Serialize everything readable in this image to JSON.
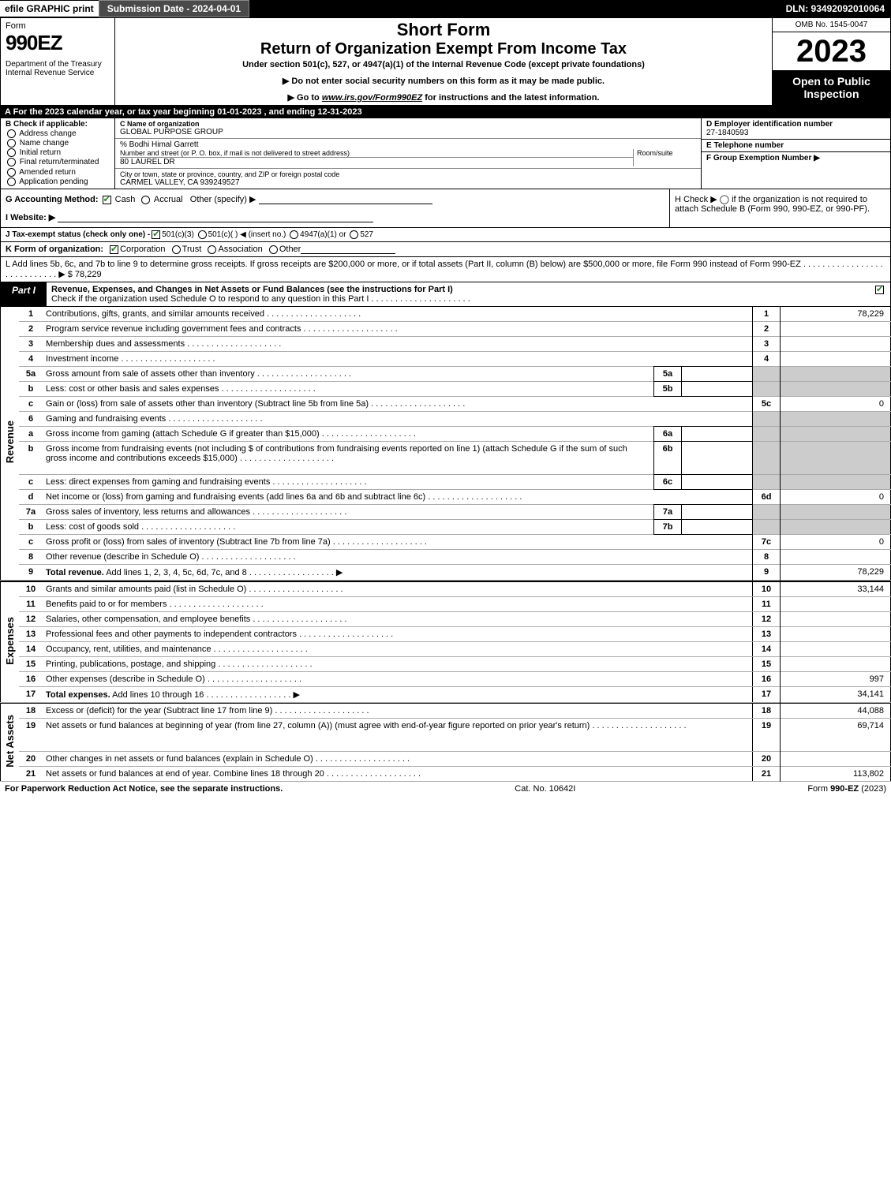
{
  "topbar": {
    "efile": "efile GRAPHIC print",
    "submission": "Submission Date - 2024-04-01",
    "dln": "DLN: 93492092010064"
  },
  "header": {
    "form_word": "Form",
    "form_number": "990EZ",
    "dept": "Department of the Treasury\nInternal Revenue Service",
    "short_form": "Short Form",
    "return_title": "Return of Organization Exempt From Income Tax",
    "under": "Under section 501(c), 527, or 4947(a)(1) of the Internal Revenue Code (except private foundations)",
    "bullet1": "▶ Do not enter social security numbers on this form as it may be made public.",
    "bullet2_pre": "▶ Go to ",
    "bullet2_link": "www.irs.gov/Form990EZ",
    "bullet2_post": " for instructions and the latest information.",
    "omb": "OMB No. 1545-0047",
    "year": "2023",
    "open": "Open to Public Inspection"
  },
  "line_a": "A  For the 2023 calendar year, or tax year beginning 01-01-2023 , and ending 12-31-2023",
  "col_b": {
    "hdr": "B  Check if applicable:",
    "items": [
      "Address change",
      "Name change",
      "Initial return",
      "Final return/terminated",
      "Amended return",
      "Application pending"
    ]
  },
  "col_c": {
    "c_lbl": "C Name of organization",
    "c_val": "GLOBAL PURPOSE GROUP",
    "care_of": "% Bodhi Himal Garrett",
    "addr_lbl": "Number and street (or P. O. box, if mail is not delivered to street address)",
    "room_lbl": "Room/suite",
    "addr_val": "80 LAUREL DR",
    "city_lbl": "City or town, state or province, country, and ZIP or foreign postal code",
    "city_val": "CARMEL VALLEY, CA  939249527"
  },
  "col_d": {
    "d_lbl": "D Employer identification number",
    "d_val": "27-1840593",
    "e_lbl": "E Telephone number",
    "e_val": "",
    "f_lbl": "F Group Exemption Number  ▶",
    "f_val": ""
  },
  "line_g": {
    "lbl": "G Accounting Method:",
    "cash": "Cash",
    "accrual": "Accrual",
    "other": "Other (specify) ▶"
  },
  "line_h": "H  Check ▶  ◯  if the organization is not required to attach Schedule B (Form 990, 990-EZ, or 990-PF).",
  "line_i": "I Website: ▶",
  "line_j": {
    "pre": "J Tax-exempt status (check only one) - ",
    "o1": "501(c)(3)",
    "o2": "501(c)(  ) ◀ (insert no.)",
    "o3": "4947(a)(1) or",
    "o4": "527"
  },
  "line_k": {
    "lbl": "K Form of organization:",
    "o1": "Corporation",
    "o2": "Trust",
    "o3": "Association",
    "o4": "Other"
  },
  "line_l": "L Add lines 5b, 6c, and 7b to line 9 to determine gross receipts. If gross receipts are $200,000 or more, or if total assets (Part II, column (B) below) are $500,000 or more, file Form 990 instead of Form 990-EZ  . . . . . . . . . . . . . . . . . . . . . . . . . . . .  ▶ $ 78,229",
  "part1": {
    "tag": "Part I",
    "title": "Revenue, Expenses, and Changes in Net Assets or Fund Balances (see the instructions for Part I)",
    "sub": "Check if the organization used Schedule O to respond to any question in this Part I  . . . . . . . . . . . . . . . . . . . . ."
  },
  "sections": {
    "revenue": "Revenue",
    "expenses": "Expenses",
    "netassets": "Net Assets"
  },
  "rows": [
    {
      "n": "1",
      "d": "Contributions, gifts, grants, and similar amounts received",
      "num": "1",
      "val": "78,229"
    },
    {
      "n": "2",
      "d": "Program service revenue including government fees and contracts",
      "num": "2",
      "val": ""
    },
    {
      "n": "3",
      "d": "Membership dues and assessments",
      "num": "3",
      "val": ""
    },
    {
      "n": "4",
      "d": "Investment income",
      "num": "4",
      "val": ""
    },
    {
      "n": "5a",
      "d": "Gross amount from sale of assets other than inventory",
      "sub": "5a",
      "subval": "",
      "grey": true
    },
    {
      "n": "b",
      "d": "Less: cost or other basis and sales expenses",
      "sub": "5b",
      "subval": "",
      "grey": true
    },
    {
      "n": "c",
      "d": "Gain or (loss) from sale of assets other than inventory (Subtract line 5b from line 5a)",
      "num": "5c",
      "val": "0"
    },
    {
      "n": "6",
      "d": "Gaming and fundraising events",
      "grey": true
    },
    {
      "n": "a",
      "d": "Gross income from gaming (attach Schedule G if greater than $15,000)",
      "sub": "6a",
      "subval": "",
      "grey": true
    },
    {
      "n": "b",
      "d": "Gross income from fundraising events (not including $                    of contributions from fundraising events reported on line 1) (attach Schedule G if the sum of such gross income and contributions exceeds $15,000)",
      "sub": "6b",
      "subval": "",
      "grey": true,
      "tall": true
    },
    {
      "n": "c",
      "d": "Less: direct expenses from gaming and fundraising events",
      "sub": "6c",
      "subval": "",
      "grey": true
    },
    {
      "n": "d",
      "d": "Net income or (loss) from gaming and fundraising events (add lines 6a and 6b and subtract line 6c)",
      "num": "6d",
      "val": "0"
    },
    {
      "n": "7a",
      "d": "Gross sales of inventory, less returns and allowances",
      "sub": "7a",
      "subval": "",
      "grey": true
    },
    {
      "n": "b",
      "d": "Less: cost of goods sold",
      "sub": "7b",
      "subval": "",
      "grey": true
    },
    {
      "n": "c",
      "d": "Gross profit or (loss) from sales of inventory (Subtract line 7b from line 7a)",
      "num": "7c",
      "val": "0"
    },
    {
      "n": "8",
      "d": "Other revenue (describe in Schedule O)",
      "num": "8",
      "val": ""
    },
    {
      "n": "9",
      "d": "Total revenue. Add lines 1, 2, 3, 4, 5c, 6d, 7c, and 8",
      "num": "9",
      "val": "78,229",
      "bold": true,
      "arrow": true
    }
  ],
  "exp_rows": [
    {
      "n": "10",
      "d": "Grants and similar amounts paid (list in Schedule O)",
      "num": "10",
      "val": "33,144"
    },
    {
      "n": "11",
      "d": "Benefits paid to or for members",
      "num": "11",
      "val": ""
    },
    {
      "n": "12",
      "d": "Salaries, other compensation, and employee benefits",
      "num": "12",
      "val": ""
    },
    {
      "n": "13",
      "d": "Professional fees and other payments to independent contractors",
      "num": "13",
      "val": ""
    },
    {
      "n": "14",
      "d": "Occupancy, rent, utilities, and maintenance",
      "num": "14",
      "val": ""
    },
    {
      "n": "15",
      "d": "Printing, publications, postage, and shipping",
      "num": "15",
      "val": ""
    },
    {
      "n": "16",
      "d": "Other expenses (describe in Schedule O)",
      "num": "16",
      "val": "997"
    },
    {
      "n": "17",
      "d": "Total expenses. Add lines 10 through 16",
      "num": "17",
      "val": "34,141",
      "bold": true,
      "arrow": true
    }
  ],
  "na_rows": [
    {
      "n": "18",
      "d": "Excess or (deficit) for the year (Subtract line 17 from line 9)",
      "num": "18",
      "val": "44,088"
    },
    {
      "n": "19",
      "d": "Net assets or fund balances at beginning of year (from line 27, column (A)) (must agree with end-of-year figure reported on prior year's return)",
      "num": "19",
      "val": "69,714",
      "tall": true
    },
    {
      "n": "20",
      "d": "Other changes in net assets or fund balances (explain in Schedule O)",
      "num": "20",
      "val": ""
    },
    {
      "n": "21",
      "d": "Net assets or fund balances at end of year. Combine lines 18 through 20",
      "num": "21",
      "val": "113,802"
    }
  ],
  "footer": {
    "left": "For Paperwork Reduction Act Notice, see the separate instructions.",
    "center": "Cat. No. 10642I",
    "right_pre": "Form ",
    "right_bold": "990-EZ",
    "right_post": " (2023)"
  }
}
